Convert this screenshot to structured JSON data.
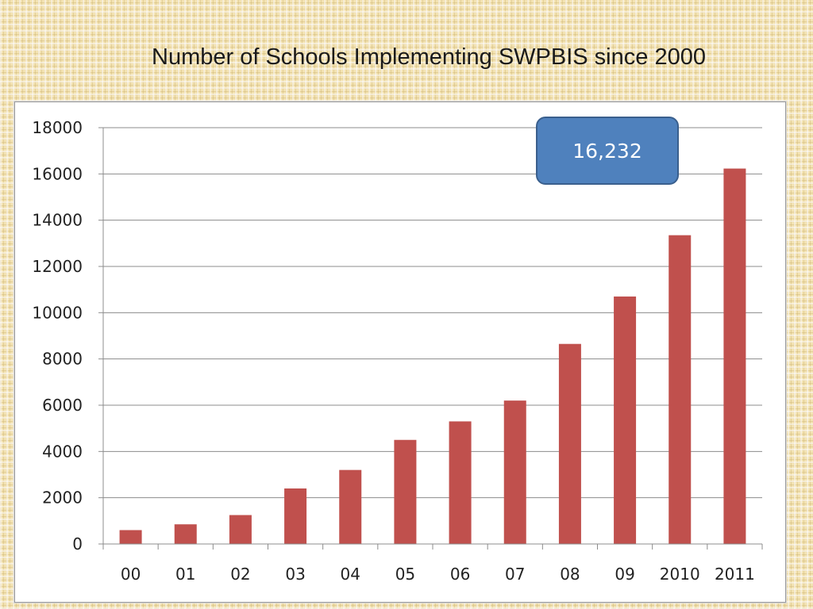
{
  "slide": {
    "title": "Number of Schools Implementing SWPBIS since 2000"
  },
  "callout": {
    "text": "16,232"
  },
  "colors": {
    "bar": "#c0504d",
    "gridline": "#8c8c8c",
    "callout_fill": "#4f81bd"
  },
  "chart_data": {
    "type": "bar",
    "title": "Number of Schools Implementing SWPBIS since 2000",
    "xlabel": "",
    "ylabel": "",
    "categories": [
      "00",
      "01",
      "02",
      "03",
      "04",
      "05",
      "06",
      "07",
      "08",
      "09",
      "2010",
      "2011"
    ],
    "values": [
      600,
      850,
      1250,
      2400,
      3200,
      4500,
      5300,
      6200,
      8650,
      10700,
      13350,
      16232
    ],
    "ylim": [
      0,
      18000
    ],
    "yticks": [
      0,
      2000,
      4000,
      6000,
      8000,
      10000,
      12000,
      14000,
      16000,
      18000
    ],
    "grid": true,
    "legend": "none"
  }
}
